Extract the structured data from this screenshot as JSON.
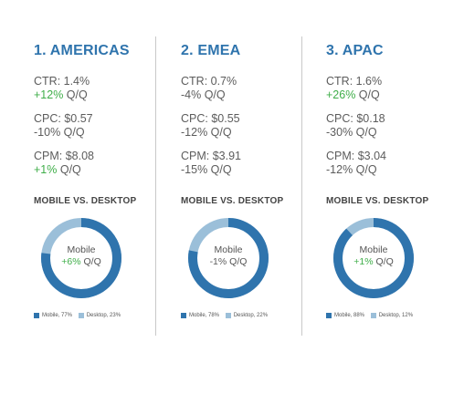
{
  "colors": {
    "title": "#2f74ad",
    "mobile": "#2f74ad",
    "desktop": "#9bbfd9",
    "positive": "#3fae49",
    "text": "#5c5c5c"
  },
  "chart_data": [
    {
      "type": "pie",
      "title": "1. AMERICAS",
      "subtitle": "MOBILE VS. DESKTOP",
      "categories": [
        "Mobile",
        "Desktop"
      ],
      "values": [
        77,
        23
      ],
      "legend": [
        "Mobile, 77%",
        "Desktop, 23%"
      ],
      "center_label": {
        "name": "Mobile",
        "change_value": "+6%",
        "change_suffix": " Q/Q"
      },
      "metrics": [
        {
          "label": "CTR: 1.4%",
          "change_value": "+12%",
          "change_suffix": " Q/Q"
        },
        {
          "label": "CPC: $0.57",
          "change_value": "-10%",
          "change_suffix": " Q/Q"
        },
        {
          "label": "CPM: $8.08",
          "change_value": "+1%",
          "change_suffix": " Q/Q"
        }
      ]
    },
    {
      "type": "pie",
      "title": "2. EMEA",
      "subtitle": "MOBILE VS. DESKTOP",
      "categories": [
        "Mobile",
        "Desktop"
      ],
      "values": [
        78,
        22
      ],
      "legend": [
        "Mobile, 78%",
        "Desktop, 22%"
      ],
      "center_label": {
        "name": "Mobile",
        "change_value": "-1%",
        "change_suffix": " Q/Q"
      },
      "metrics": [
        {
          "label": "CTR: 0.7%",
          "change_value": "-4%",
          "change_suffix": " Q/Q"
        },
        {
          "label": "CPC: $0.55",
          "change_value": "-12%",
          "change_suffix": " Q/Q"
        },
        {
          "label": "CPM: $3.91",
          "change_value": "-15%",
          "change_suffix": " Q/Q"
        }
      ]
    },
    {
      "type": "pie",
      "title": "3. APAC",
      "subtitle": "MOBILE VS. DESKTOP",
      "categories": [
        "Mobile",
        "Desktop"
      ],
      "values": [
        88,
        12
      ],
      "legend": [
        "Mobile, 88%",
        "Desktop, 12%"
      ],
      "center_label": {
        "name": "Mobile",
        "change_value": "+1%",
        "change_suffix": " Q/Q"
      },
      "metrics": [
        {
          "label": "CTR: 1.6%",
          "change_value": "+26%",
          "change_suffix": " Q/Q"
        },
        {
          "label": "CPC: $0.18",
          "change_value": "-30%",
          "change_suffix": " Q/Q"
        },
        {
          "label": "CPM: $3.04",
          "change_value": "-12%",
          "change_suffix": " Q/Q"
        }
      ]
    }
  ]
}
